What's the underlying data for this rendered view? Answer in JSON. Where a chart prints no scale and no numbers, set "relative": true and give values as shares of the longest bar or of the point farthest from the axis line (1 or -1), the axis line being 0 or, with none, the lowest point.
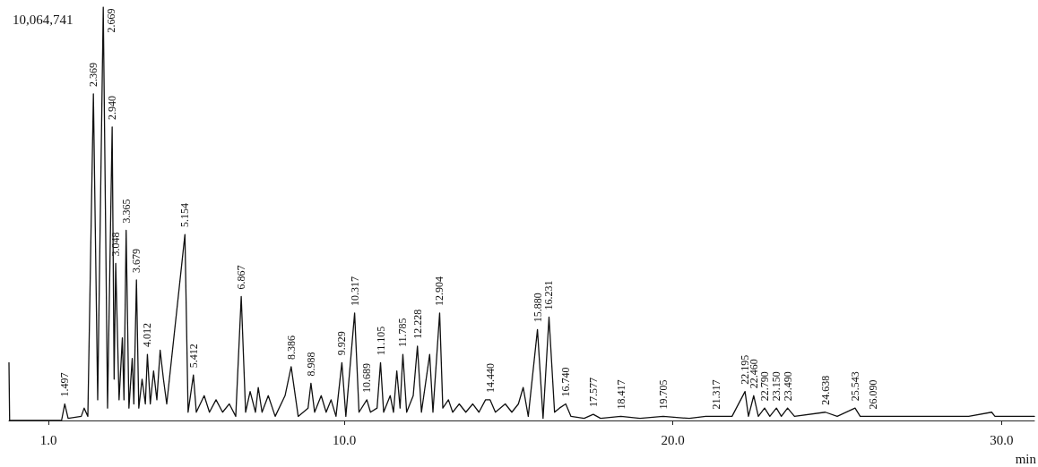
{
  "chart_data": {
    "type": "line",
    "relative": true,
    "xlabel": "min",
    "xlim": [
      -0.2,
      31.0
    ],
    "xticks": [
      {
        "value": 1,
        "label": "1.0"
      },
      {
        "value": 10,
        "label": "10.0"
      },
      {
        "value": 20,
        "label": "20.0"
      },
      {
        "value": 30,
        "label": "30.0"
      }
    ],
    "grid": false,
    "marker": "none",
    "series": [
      {
        "color": "#111111",
        "x": [
          -0.2,
          -0.18,
          1.4,
          1.497,
          1.6,
          2.0,
          2.088,
          2.2,
          2.369,
          2.5,
          2.669,
          2.8,
          2.94,
          3.0,
          3.048,
          3.15,
          3.25,
          3.3,
          3.365,
          3.45,
          3.55,
          3.6,
          3.679,
          3.75,
          3.85,
          3.95,
          4.012,
          4.1,
          4.2,
          4.3,
          4.4,
          4.5,
          4.6,
          5.154,
          5.25,
          5.412,
          5.5,
          5.74,
          5.9,
          6.1,
          6.3,
          6.504,
          6.7,
          6.867,
          7.0,
          7.138,
          7.3,
          7.385,
          7.5,
          7.689,
          7.9,
          8.2,
          8.386,
          8.6,
          8.9,
          8.988,
          9.1,
          9.3,
          9.45,
          9.6,
          9.75,
          9.929,
          10.05,
          10.317,
          10.45,
          10.689,
          10.8,
          11.0,
          11.105,
          11.2,
          11.4,
          11.5,
          11.6,
          11.7,
          11.785,
          11.9,
          12.1,
          12.228,
          12.35,
          12.6,
          12.7,
          12.904,
          13.0,
          13.171,
          13.3,
          13.5,
          13.7,
          13.912,
          14.1,
          14.3,
          14.44,
          14.6,
          14.9,
          15.1,
          15.3,
          15.446,
          15.6,
          15.88,
          16.05,
          16.231,
          16.4,
          16.55,
          16.74,
          16.9,
          17.3,
          17.577,
          17.8,
          18.417,
          19.0,
          19.705,
          20.5,
          21.0,
          21.317,
          21.8,
          22.195,
          22.3,
          22.46,
          22.6,
          22.79,
          22.95,
          23.15,
          23.3,
          23.49,
          23.7,
          24.638,
          25.0,
          25.543,
          25.7,
          26.09,
          29.0,
          29.7,
          29.8,
          31.0
        ],
        "values": [
          0.14,
          0.0,
          0.0,
          0.04,
          0.005,
          0.01,
          0.03,
          0.01,
          0.79,
          0.05,
          1.0,
          0.03,
          0.71,
          0.1,
          0.38,
          0.05,
          0.2,
          0.05,
          0.46,
          0.03,
          0.15,
          0.04,
          0.34,
          0.03,
          0.1,
          0.04,
          0.16,
          0.04,
          0.12,
          0.05,
          0.17,
          0.1,
          0.04,
          0.45,
          0.02,
          0.11,
          0.02,
          0.06,
          0.02,
          0.05,
          0.02,
          0.04,
          0.01,
          0.3,
          0.02,
          0.07,
          0.02,
          0.08,
          0.02,
          0.06,
          0.01,
          0.06,
          0.13,
          0.01,
          0.03,
          0.09,
          0.02,
          0.06,
          0.02,
          0.05,
          0.01,
          0.14,
          0.01,
          0.26,
          0.02,
          0.05,
          0.02,
          0.03,
          0.14,
          0.02,
          0.06,
          0.02,
          0.12,
          0.03,
          0.16,
          0.02,
          0.06,
          0.18,
          0.02,
          0.16,
          0.02,
          0.26,
          0.03,
          0.05,
          0.02,
          0.04,
          0.02,
          0.04,
          0.02,
          0.05,
          0.05,
          0.02,
          0.04,
          0.02,
          0.04,
          0.08,
          0.01,
          0.22,
          0.005,
          0.25,
          0.02,
          0.03,
          0.04,
          0.01,
          0.005,
          0.015,
          0.005,
          0.01,
          0.005,
          0.01,
          0.005,
          0.01,
          0.01,
          0.01,
          0.07,
          0.01,
          0.06,
          0.01,
          0.03,
          0.01,
          0.03,
          0.01,
          0.03,
          0.01,
          0.02,
          0.01,
          0.03,
          0.01,
          0.01,
          0.01,
          0.02,
          0.01,
          0.01
        ]
      }
    ],
    "annotations": [
      "10,064,741",
      {
        "text": "1.497",
        "x": 1.497,
        "y": 0.04
      },
      {
        "text": "2.369",
        "x": 2.369,
        "y": 0.79
      },
      {
        "text": "2.669",
        "x": 2.669,
        "y": 1.0
      },
      {
        "text": "2.940",
        "x": 2.94,
        "y": 0.71
      },
      {
        "text": "3.048",
        "x": 3.048,
        "y": 0.38
      },
      {
        "text": "3.365",
        "x": 3.365,
        "y": 0.46
      },
      {
        "text": "3.679",
        "x": 3.679,
        "y": 0.34
      },
      {
        "text": "4.012",
        "x": 4.012,
        "y": 0.16
      },
      {
        "text": "5.154",
        "x": 5.154,
        "y": 0.45
      },
      {
        "text": "5.412",
        "x": 5.412,
        "y": 0.11
      },
      {
        "text": "6.867",
        "x": 6.867,
        "y": 0.3
      },
      {
        "text": "8.386",
        "x": 8.386,
        "y": 0.13
      },
      {
        "text": "8.988",
        "x": 8.988,
        "y": 0.09
      },
      {
        "text": "9.929",
        "x": 9.929,
        "y": 0.14
      },
      {
        "text": "10.317",
        "x": 10.317,
        "y": 0.26
      },
      {
        "text": "10.689",
        "x": 10.689,
        "y": 0.05
      },
      {
        "text": "11.105",
        "x": 11.105,
        "y": 0.14
      },
      {
        "text": "11.785",
        "x": 11.785,
        "y": 0.16
      },
      {
        "text": "12.228",
        "x": 12.228,
        "y": 0.18
      },
      {
        "text": "12.904",
        "x": 12.904,
        "y": 0.26
      },
      {
        "text": "14.440",
        "x": 14.44,
        "y": 0.05
      },
      {
        "text": "15.880",
        "x": 15.88,
        "y": 0.22
      },
      {
        "text": "16.231",
        "x": 16.231,
        "y": 0.25
      },
      {
        "text": "16.740",
        "x": 16.74,
        "y": 0.04
      },
      {
        "text": "17.577",
        "x": 17.577,
        "y": 0.015
      },
      {
        "text": "18.417",
        "x": 18.417,
        "y": 0.01
      },
      {
        "text": "19.705",
        "x": 19.705,
        "y": 0.01
      },
      {
        "text": "21.317",
        "x": 21.317,
        "y": 0.01
      },
      {
        "text": "22.195",
        "x": 22.195,
        "y": 0.07
      },
      {
        "text": "22.460",
        "x": 22.46,
        "y": 0.06
      },
      {
        "text": "22.790",
        "x": 22.79,
        "y": 0.03
      },
      {
        "text": "23.150",
        "x": 23.15,
        "y": 0.03
      },
      {
        "text": "23.490",
        "x": 23.49,
        "y": 0.03
      },
      {
        "text": "24.638",
        "x": 24.638,
        "y": 0.02
      },
      {
        "text": "25.543",
        "x": 25.543,
        "y": 0.03
      },
      {
        "text": "26.090",
        "x": 26.09,
        "y": 0.01
      }
    ]
  }
}
